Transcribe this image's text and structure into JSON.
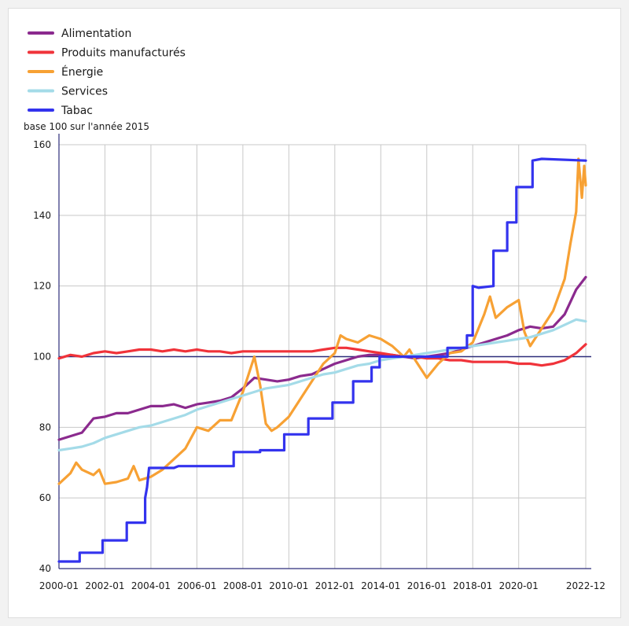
{
  "chart_data": {
    "type": "line",
    "unit_label": "base 100 sur l'année 2015",
    "reference_value": 100,
    "ylim": [
      40,
      160
    ],
    "y_ticks": [
      40,
      60,
      80,
      100,
      120,
      140,
      160
    ],
    "y_tick_labels": [
      "40",
      "60",
      "80",
      "100",
      "120",
      "140",
      "160"
    ],
    "x_range": [
      2000.0,
      2022.917
    ],
    "x_ticks": [
      2000,
      2002,
      2004,
      2006,
      2008,
      2010,
      2012,
      2014,
      2016,
      2018,
      2020,
      2022.917
    ],
    "x_tick_labels": [
      "2000-01",
      "2002-01",
      "2004-01",
      "2006-01",
      "2008-01",
      "2010-01",
      "2012-01",
      "2014-01",
      "2016-01",
      "2018-01",
      "2020-01",
      "2022-12"
    ],
    "legend_position": "top-left",
    "series": [
      {
        "name": "Alimentation",
        "color": "#8b2a8e",
        "points": [
          [
            2000.0,
            76.5
          ],
          [
            2000.5,
            77.5
          ],
          [
            2001.0,
            78.5
          ],
          [
            2001.5,
            82.5
          ],
          [
            2002.0,
            83
          ],
          [
            2002.5,
            84
          ],
          [
            2003.0,
            84
          ],
          [
            2003.5,
            85
          ],
          [
            2004.0,
            86
          ],
          [
            2004.5,
            86
          ],
          [
            2005.0,
            86.5
          ],
          [
            2005.5,
            85.5
          ],
          [
            2006.0,
            86.5
          ],
          [
            2006.5,
            87
          ],
          [
            2007.0,
            87.5
          ],
          [
            2007.5,
            88.5
          ],
          [
            2008.0,
            91
          ],
          [
            2008.5,
            94
          ],
          [
            2009.0,
            93.5
          ],
          [
            2009.5,
            93
          ],
          [
            2010.0,
            93.5
          ],
          [
            2010.5,
            94.5
          ],
          [
            2011.0,
            95
          ],
          [
            2011.5,
            96.5
          ],
          [
            2012.0,
            98
          ],
          [
            2012.5,
            99
          ],
          [
            2013.0,
            100
          ],
          [
            2013.5,
            100.5
          ],
          [
            2014.0,
            100.5
          ],
          [
            2014.5,
            100.5
          ],
          [
            2015.0,
            100
          ],
          [
            2015.5,
            99.5
          ],
          [
            2016.0,
            100
          ],
          [
            2016.5,
            100.5
          ],
          [
            2017.0,
            101
          ],
          [
            2017.5,
            102
          ],
          [
            2018.0,
            103
          ],
          [
            2018.5,
            104
          ],
          [
            2019.0,
            105
          ],
          [
            2019.5,
            106
          ],
          [
            2020.0,
            107.5
          ],
          [
            2020.5,
            108.5
          ],
          [
            2021.0,
            108
          ],
          [
            2021.5,
            108.5
          ],
          [
            2022.0,
            112
          ],
          [
            2022.5,
            119
          ],
          [
            2022.917,
            122.5
          ]
        ]
      },
      {
        "name": "Produits manufacturés",
        "color": "#f0333a",
        "points": [
          [
            2000.0,
            99.5
          ],
          [
            2000.5,
            100.5
          ],
          [
            2001.0,
            100
          ],
          [
            2001.5,
            101
          ],
          [
            2002.0,
            101.5
          ],
          [
            2002.5,
            101
          ],
          [
            2003.0,
            101.5
          ],
          [
            2003.5,
            102
          ],
          [
            2004.0,
            102
          ],
          [
            2004.5,
            101.5
          ],
          [
            2005.0,
            102
          ],
          [
            2005.5,
            101.5
          ],
          [
            2006.0,
            102
          ],
          [
            2006.5,
            101.5
          ],
          [
            2007.0,
            101.5
          ],
          [
            2007.5,
            101
          ],
          [
            2008.0,
            101.5
          ],
          [
            2008.5,
            101.5
          ],
          [
            2009.0,
            101.5
          ],
          [
            2009.5,
            101.5
          ],
          [
            2010.0,
            101.5
          ],
          [
            2010.5,
            101.5
          ],
          [
            2011.0,
            101.5
          ],
          [
            2011.5,
            102
          ],
          [
            2012.0,
            102.5
          ],
          [
            2012.5,
            102.5
          ],
          [
            2013.0,
            102
          ],
          [
            2013.5,
            101.5
          ],
          [
            2014.0,
            101
          ],
          [
            2014.5,
            100.5
          ],
          [
            2015.0,
            100
          ],
          [
            2015.5,
            100
          ],
          [
            2016.0,
            99.5
          ],
          [
            2016.5,
            99.5
          ],
          [
            2017.0,
            99
          ],
          [
            2017.5,
            99
          ],
          [
            2018.0,
            98.5
          ],
          [
            2018.5,
            98.5
          ],
          [
            2019.0,
            98.5
          ],
          [
            2019.5,
            98.5
          ],
          [
            2020.0,
            98
          ],
          [
            2020.5,
            98
          ],
          [
            2021.0,
            97.5
          ],
          [
            2021.5,
            98
          ],
          [
            2022.0,
            99
          ],
          [
            2022.5,
            101
          ],
          [
            2022.917,
            103.5
          ]
        ]
      },
      {
        "name": "Énergie",
        "color": "#f7a134",
        "points": [
          [
            2000.0,
            64
          ],
          [
            2000.5,
            67
          ],
          [
            2000.75,
            70
          ],
          [
            2001.0,
            68
          ],
          [
            2001.5,
            66.5
          ],
          [
            2001.75,
            68
          ],
          [
            2002.0,
            64
          ],
          [
            2002.5,
            64.5
          ],
          [
            2003.0,
            65.5
          ],
          [
            2003.25,
            69
          ],
          [
            2003.5,
            65
          ],
          [
            2004.0,
            66
          ],
          [
            2004.5,
            68
          ],
          [
            2005.0,
            71
          ],
          [
            2005.5,
            74
          ],
          [
            2006.0,
            80
          ],
          [
            2006.5,
            79
          ],
          [
            2007.0,
            82
          ],
          [
            2007.5,
            82
          ],
          [
            2008.0,
            90
          ],
          [
            2008.5,
            100
          ],
          [
            2008.75,
            92
          ],
          [
            2009.0,
            81
          ],
          [
            2009.25,
            79
          ],
          [
            2009.5,
            80
          ],
          [
            2010.0,
            83
          ],
          [
            2010.5,
            88
          ],
          [
            2011.0,
            93
          ],
          [
            2011.5,
            98
          ],
          [
            2012.0,
            101
          ],
          [
            2012.25,
            106
          ],
          [
            2012.5,
            105
          ],
          [
            2013.0,
            104
          ],
          [
            2013.5,
            106
          ],
          [
            2014.0,
            105
          ],
          [
            2014.5,
            103
          ],
          [
            2015.0,
            100
          ],
          [
            2015.25,
            102
          ],
          [
            2015.5,
            99
          ],
          [
            2016.0,
            94
          ],
          [
            2016.5,
            98
          ],
          [
            2017.0,
            101
          ],
          [
            2017.5,
            101.5
          ],
          [
            2018.0,
            104
          ],
          [
            2018.25,
            108
          ],
          [
            2018.5,
            112
          ],
          [
            2018.75,
            117
          ],
          [
            2019.0,
            111
          ],
          [
            2019.5,
            114
          ],
          [
            2020.0,
            116
          ],
          [
            2020.25,
            107
          ],
          [
            2020.5,
            103
          ],
          [
            2021.0,
            108
          ],
          [
            2021.5,
            113
          ],
          [
            2022.0,
            122
          ],
          [
            2022.25,
            132
          ],
          [
            2022.5,
            141
          ],
          [
            2022.6,
            156
          ],
          [
            2022.75,
            145
          ],
          [
            2022.85,
            154
          ],
          [
            2022.917,
            148.5
          ]
        ]
      },
      {
        "name": "Services",
        "color": "#a4dbe8",
        "points": [
          [
            2000.0,
            73.5
          ],
          [
            2000.5,
            74
          ],
          [
            2001.0,
            74.5
          ],
          [
            2001.5,
            75.5
          ],
          [
            2002.0,
            77
          ],
          [
            2002.5,
            78
          ],
          [
            2003.0,
            79
          ],
          [
            2003.5,
            80
          ],
          [
            2004.0,
            80.5
          ],
          [
            2004.5,
            81.5
          ],
          [
            2005.0,
            82.5
          ],
          [
            2005.5,
            83.5
          ],
          [
            2006.0,
            85
          ],
          [
            2006.5,
            86
          ],
          [
            2007.0,
            87
          ],
          [
            2007.5,
            88
          ],
          [
            2008.0,
            89
          ],
          [
            2008.5,
            90
          ],
          [
            2009.0,
            91
          ],
          [
            2009.5,
            91.5
          ],
          [
            2010.0,
            92
          ],
          [
            2010.5,
            93
          ],
          [
            2011.0,
            94
          ],
          [
            2011.5,
            95
          ],
          [
            2012.0,
            95.5
          ],
          [
            2012.5,
            96.5
          ],
          [
            2013.0,
            97.5
          ],
          [
            2013.5,
            98
          ],
          [
            2014.0,
            99
          ],
          [
            2014.5,
            99.5
          ],
          [
            2015.0,
            100
          ],
          [
            2015.5,
            100.5
          ],
          [
            2016.0,
            101
          ],
          [
            2016.5,
            101.5
          ],
          [
            2017.0,
            102
          ],
          [
            2017.5,
            102.5
          ],
          [
            2018.0,
            103
          ],
          [
            2018.5,
            103.5
          ],
          [
            2019.0,
            104
          ],
          [
            2019.5,
            104.5
          ],
          [
            2020.0,
            105
          ],
          [
            2020.5,
            105.5
          ],
          [
            2021.0,
            106.5
          ],
          [
            2021.5,
            107.5
          ],
          [
            2022.0,
            109
          ],
          [
            2022.5,
            110.5
          ],
          [
            2022.917,
            110
          ]
        ]
      },
      {
        "name": "Tabac",
        "color": "#3333ee",
        "points": [
          [
            2000.0,
            42
          ],
          [
            2000.9,
            42
          ],
          [
            2000.9,
            44.5
          ],
          [
            2001.9,
            44.5
          ],
          [
            2001.9,
            48
          ],
          [
            2002.95,
            48
          ],
          [
            2002.95,
            53
          ],
          [
            2003.75,
            53
          ],
          [
            2003.75,
            60
          ],
          [
            2003.83,
            63
          ],
          [
            2003.92,
            68.5
          ],
          [
            2005.0,
            68.5
          ],
          [
            2005.2,
            69
          ],
          [
            2007.6,
            69
          ],
          [
            2007.6,
            73
          ],
          [
            2008.75,
            73
          ],
          [
            2008.75,
            73.5
          ],
          [
            2009.8,
            73.5
          ],
          [
            2009.8,
            78
          ],
          [
            2010.85,
            78
          ],
          [
            2010.85,
            82.5
          ],
          [
            2011.9,
            82.5
          ],
          [
            2011.9,
            87
          ],
          [
            2012.8,
            87
          ],
          [
            2012.8,
            93
          ],
          [
            2013.6,
            93
          ],
          [
            2013.6,
            97
          ],
          [
            2013.95,
            97
          ],
          [
            2013.95,
            100
          ],
          [
            2016.0,
            100
          ],
          [
            2016.9,
            100
          ],
          [
            2016.9,
            102.5
          ],
          [
            2017.75,
            102.5
          ],
          [
            2017.75,
            106
          ],
          [
            2018.0,
            106
          ],
          [
            2018.0,
            120
          ],
          [
            2018.25,
            119.5
          ],
          [
            2018.9,
            120
          ],
          [
            2018.9,
            130
          ],
          [
            2019.5,
            130
          ],
          [
            2019.5,
            138
          ],
          [
            2019.9,
            138
          ],
          [
            2019.9,
            148
          ],
          [
            2020.6,
            148
          ],
          [
            2020.6,
            155.5
          ],
          [
            2021.0,
            156
          ],
          [
            2022.917,
            155.5
          ]
        ]
      }
    ]
  }
}
